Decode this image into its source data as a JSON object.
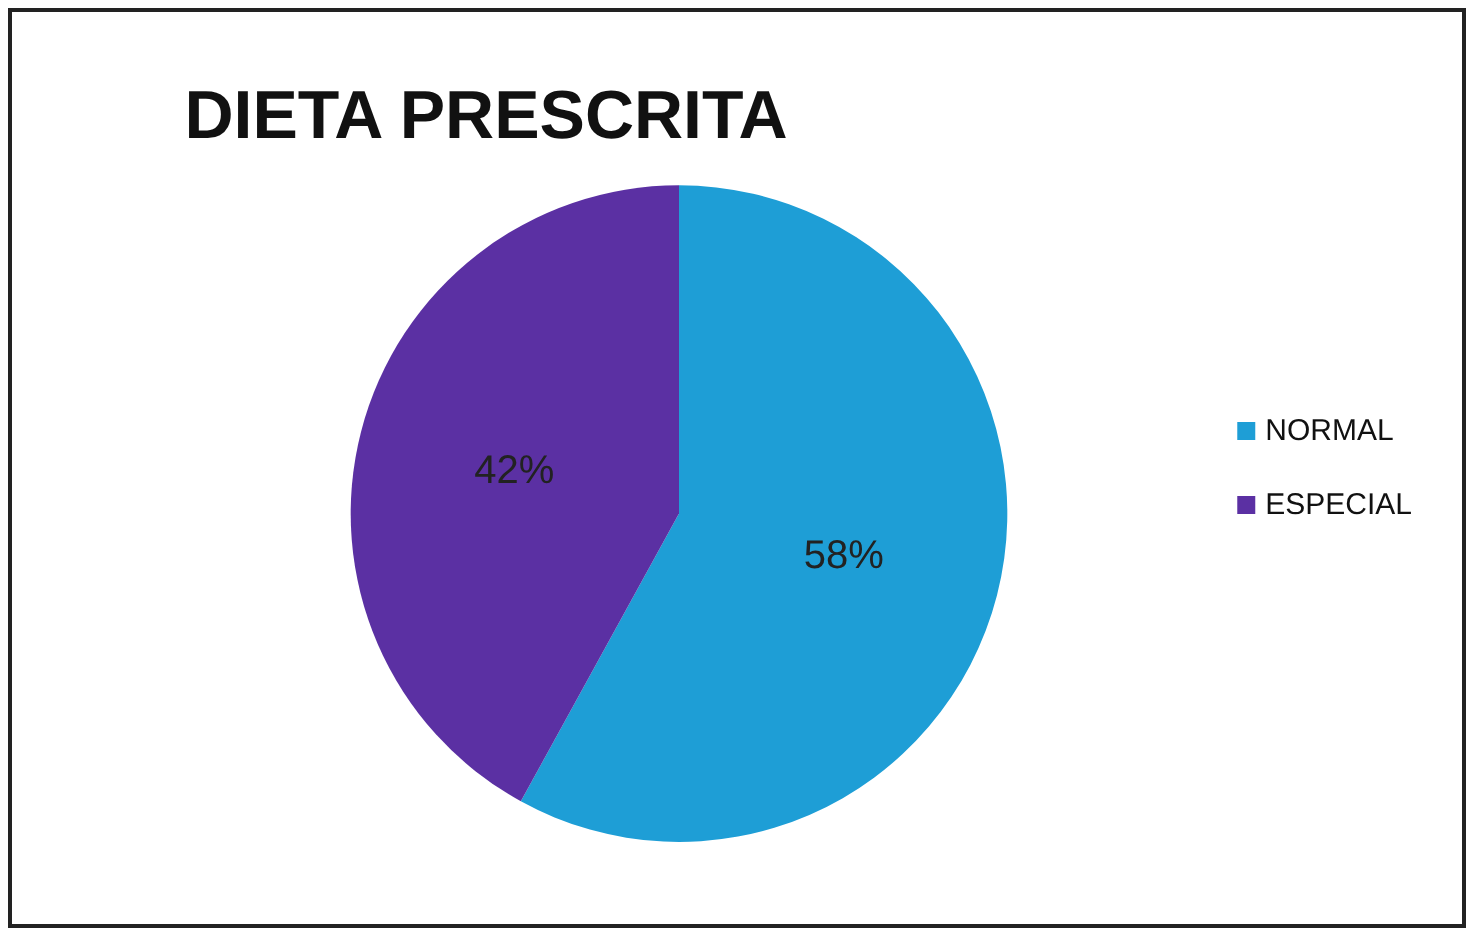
{
  "chart_data": {
    "type": "pie",
    "title": "DIETA PRESCRITA",
    "categories": [
      "NORMAL",
      "ESPECIAL"
    ],
    "values": [
      58,
      42
    ],
    "colors": [
      "#1e9ed6",
      "#5b30a3"
    ],
    "value_labels": [
      "58%",
      "42%"
    ],
    "legend": "right"
  }
}
